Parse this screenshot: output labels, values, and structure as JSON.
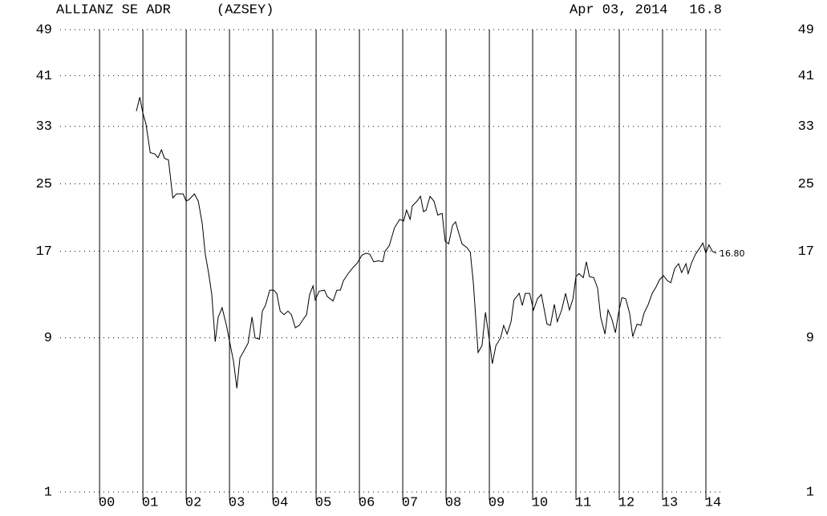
{
  "chart_data": {
    "type": "line",
    "title": "ALLIANZ SE ADR",
    "symbol": "(AZSEY)",
    "date": "Apr 03, 2014",
    "price": "16.8",
    "last_value_label": "16.80",
    "x": [
      2000.85,
      2000.93,
      2001.0,
      2001.07,
      2001.17,
      2001.28,
      2001.35,
      2001.43,
      2001.5,
      2001.59,
      2001.69,
      2001.78,
      2001.93,
      2002.0,
      2002.07,
      2002.19,
      2002.28,
      2002.37,
      2002.44,
      2002.52,
      2002.59,
      2002.67,
      2002.74,
      2002.83,
      2002.93,
      2003.02,
      2003.09,
      2003.17,
      2003.24,
      2003.33,
      2003.43,
      2003.52,
      2003.59,
      2003.69,
      2003.76,
      2003.83,
      2003.93,
      2004.02,
      2004.09,
      2004.17,
      2004.26,
      2004.35,
      2004.43,
      2004.52,
      2004.61,
      2004.7,
      2004.78,
      2004.85,
      2004.93,
      2004.98,
      2005.07,
      2005.19,
      2005.26,
      2005.39,
      2005.48,
      2005.56,
      2005.63,
      2005.74,
      2005.85,
      2005.94,
      2006.06,
      2006.15,
      2006.24,
      2006.33,
      2006.44,
      2006.54,
      2006.59,
      2006.69,
      2006.81,
      2006.93,
      2007.02,
      2007.09,
      2007.17,
      2007.22,
      2007.33,
      2007.41,
      2007.48,
      2007.54,
      2007.63,
      2007.72,
      2007.81,
      2007.91,
      2007.98,
      2008.06,
      2008.15,
      2008.22,
      2008.3,
      2008.37,
      2008.48,
      2008.56,
      2008.63,
      2008.74,
      2008.83,
      2008.91,
      2009.0,
      2009.07,
      2009.15,
      2009.26,
      2009.33,
      2009.41,
      2009.5,
      2009.57,
      2009.69,
      2009.76,
      2009.83,
      2009.93,
      2010.02,
      2010.11,
      2010.2,
      2010.33,
      2010.41,
      2010.5,
      2010.57,
      2010.67,
      2010.76,
      2010.85,
      2010.93,
      2011.0,
      2011.07,
      2011.17,
      2011.24,
      2011.31,
      2011.41,
      2011.5,
      2011.57,
      2011.67,
      2011.74,
      2011.83,
      2011.91,
      2011.98,
      2012.06,
      2012.15,
      2012.24,
      2012.31,
      2012.41,
      2012.5,
      2012.57,
      2012.67,
      2012.76,
      2012.85,
      2012.93,
      2013.02,
      2013.11,
      2013.19,
      2013.28,
      2013.37,
      2013.44,
      2013.54,
      2013.59,
      2013.67,
      2013.76,
      2013.85,
      2013.93,
      2014.0,
      2014.07,
      2014.15,
      2014.24
    ],
    "values": [
      35.3,
      37.5,
      35,
      33.4,
      29.2,
      29,
      28.5,
      29.6,
      28.4,
      28.2,
      23.2,
      23.7,
      23.7,
      22.8,
      23,
      23.7,
      22.8,
      20.1,
      16.7,
      14.7,
      12.7,
      8.7,
      10.7,
      11.5,
      10,
      8.4,
      7.3,
      5.5,
      7.5,
      8.0,
      8.6,
      10.7,
      9,
      8.9,
      11.2,
      11.7,
      13.1,
      13.1,
      12.8,
      11.2,
      10.9,
      11.2,
      10.9,
      9.8,
      10,
      10.5,
      10.9,
      12.7,
      13.5,
      12.2,
      13,
      13.1,
      12.5,
      12.1,
      13.1,
      13.1,
      14,
      14.7,
      15.3,
      15.7,
      16.6,
      16.8,
      16.7,
      15.9,
      16,
      15.9,
      17,
      17.6,
      19.6,
      20.6,
      20.4,
      21.7,
      20.6,
      22.2,
      22.8,
      23.4,
      21.5,
      21.7,
      23.4,
      22.8,
      21.1,
      21.3,
      18.1,
      17.8,
      19.9,
      20.3,
      18.9,
      17.8,
      17.4,
      16.9,
      13.8,
      7.9,
      8.4,
      11.1,
      8.8,
      7.1,
      8.4,
      9,
      10,
      9.3,
      10.3,
      12.2,
      12.8,
      11.7,
      12.8,
      12.8,
      11.3,
      12.3,
      12.7,
      10.1,
      10,
      11.8,
      10.3,
      11.3,
      12.8,
      11.3,
      12.3,
      14.4,
      14.7,
      14.3,
      15.9,
      14.4,
      14.3,
      13.3,
      10.7,
      9.3,
      11.3,
      10.5,
      9.4,
      11,
      12.4,
      12.3,
      11,
      9.1,
      10.1,
      10,
      11,
      11.8,
      12.8,
      13.4,
      14.1,
      14.5,
      14,
      13.8,
      15.2,
      15.7,
      14.8,
      15.7,
      14.7,
      15.8,
      16.7,
      17.3,
      17.9,
      16.8,
      17.7,
      17,
      16.8
    ],
    "color": "#000000",
    "scale": "sqrt",
    "xlim": [
      1999.09,
      2014.37
    ],
    "xticks": [
      {
        "value": 2000,
        "label": "00"
      },
      {
        "value": 2001,
        "label": "01"
      },
      {
        "value": 2002,
        "label": "02"
      },
      {
        "value": 2003,
        "label": "03"
      },
      {
        "value": 2004,
        "label": "04"
      },
      {
        "value": 2005,
        "label": "05"
      },
      {
        "value": 2006,
        "label": "06"
      },
      {
        "value": 2007,
        "label": "07"
      },
      {
        "value": 2008,
        "label": "08"
      },
      {
        "value": 2009,
        "label": "09"
      },
      {
        "value": 2010,
        "label": "10"
      },
      {
        "value": 2011,
        "label": "11"
      },
      {
        "value": 2012,
        "label": "12"
      },
      {
        "value": 2013,
        "label": "13"
      },
      {
        "value": 2014,
        "label": "14"
      }
    ],
    "ylim": [
      1,
      49
    ],
    "yticks": [
      1,
      9,
      17,
      25,
      33,
      41,
      49
    ],
    "grid": true
  }
}
